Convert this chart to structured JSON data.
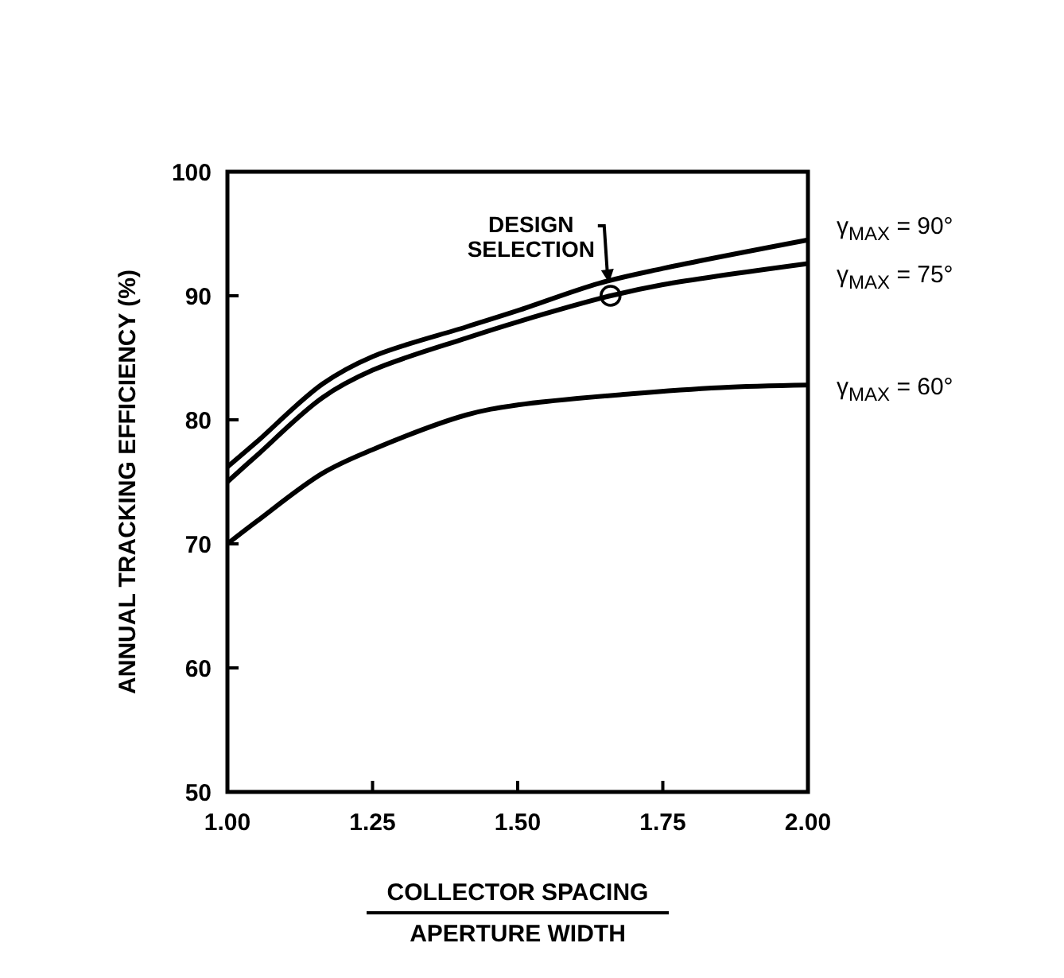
{
  "chart_data": {
    "type": "line",
    "xlabel": "COLLECTOR SPACING\nAPERTURE WIDTH",
    "ylabel": "ANNUAL TRACKING EFFICIENCY (%)",
    "xlim": [
      1,
      2
    ],
    "xticks": [
      {
        "value": 1,
        "label": "1.00"
      },
      1.25,
      {
        "value": 1.5,
        "label": "1.50"
      },
      1.75,
      {
        "value": 2,
        "label": "2.00"
      }
    ],
    "ylim": [
      50,
      100
    ],
    "yticks": [
      50,
      60,
      70,
      80,
      90,
      100
    ],
    "grid": false,
    "legend": false,
    "marker": "none",
    "line_style": "solid",
    "annotations": [
      {
        "text": "DESIGN SELECTION",
        "x": 1.66,
        "y": 90
      }
    ],
    "series": [
      {
        "name": "γ$_{MAX}$ = 90°",
        "color": "#000000",
        "x": [
          1,
          1.05,
          1.164,
          1.25,
          1.412,
          1.5,
          1.64,
          1.75,
          2
        ],
        "values": [
          76.2,
          78.2,
          82.9,
          85.1,
          87.5,
          88.8,
          91.0,
          92.2,
          94.5
        ]
      },
      {
        "name": "γ$_{MAX}$ = 75°",
        "color": "#000000",
        "x": [
          1,
          1.05,
          1.164,
          1.25,
          1.412,
          1.5,
          1.66,
          1.75,
          2
        ],
        "values": [
          75.0,
          77.1,
          81.8,
          84.0,
          86.6,
          87.9,
          90.0,
          90.9,
          92.6
        ]
      },
      {
        "name": "γ$_{MAX}$ = 60°",
        "color": "#000000",
        "x": [
          1,
          1.05,
          1.164,
          1.25,
          1.412,
          1.5,
          1.696,
          1.85,
          2
        ],
        "values": [
          70.0,
          71.8,
          75.7,
          77.6,
          80.4,
          81.2,
          82.1,
          82.6,
          82.8
        ]
      }
    ]
  }
}
